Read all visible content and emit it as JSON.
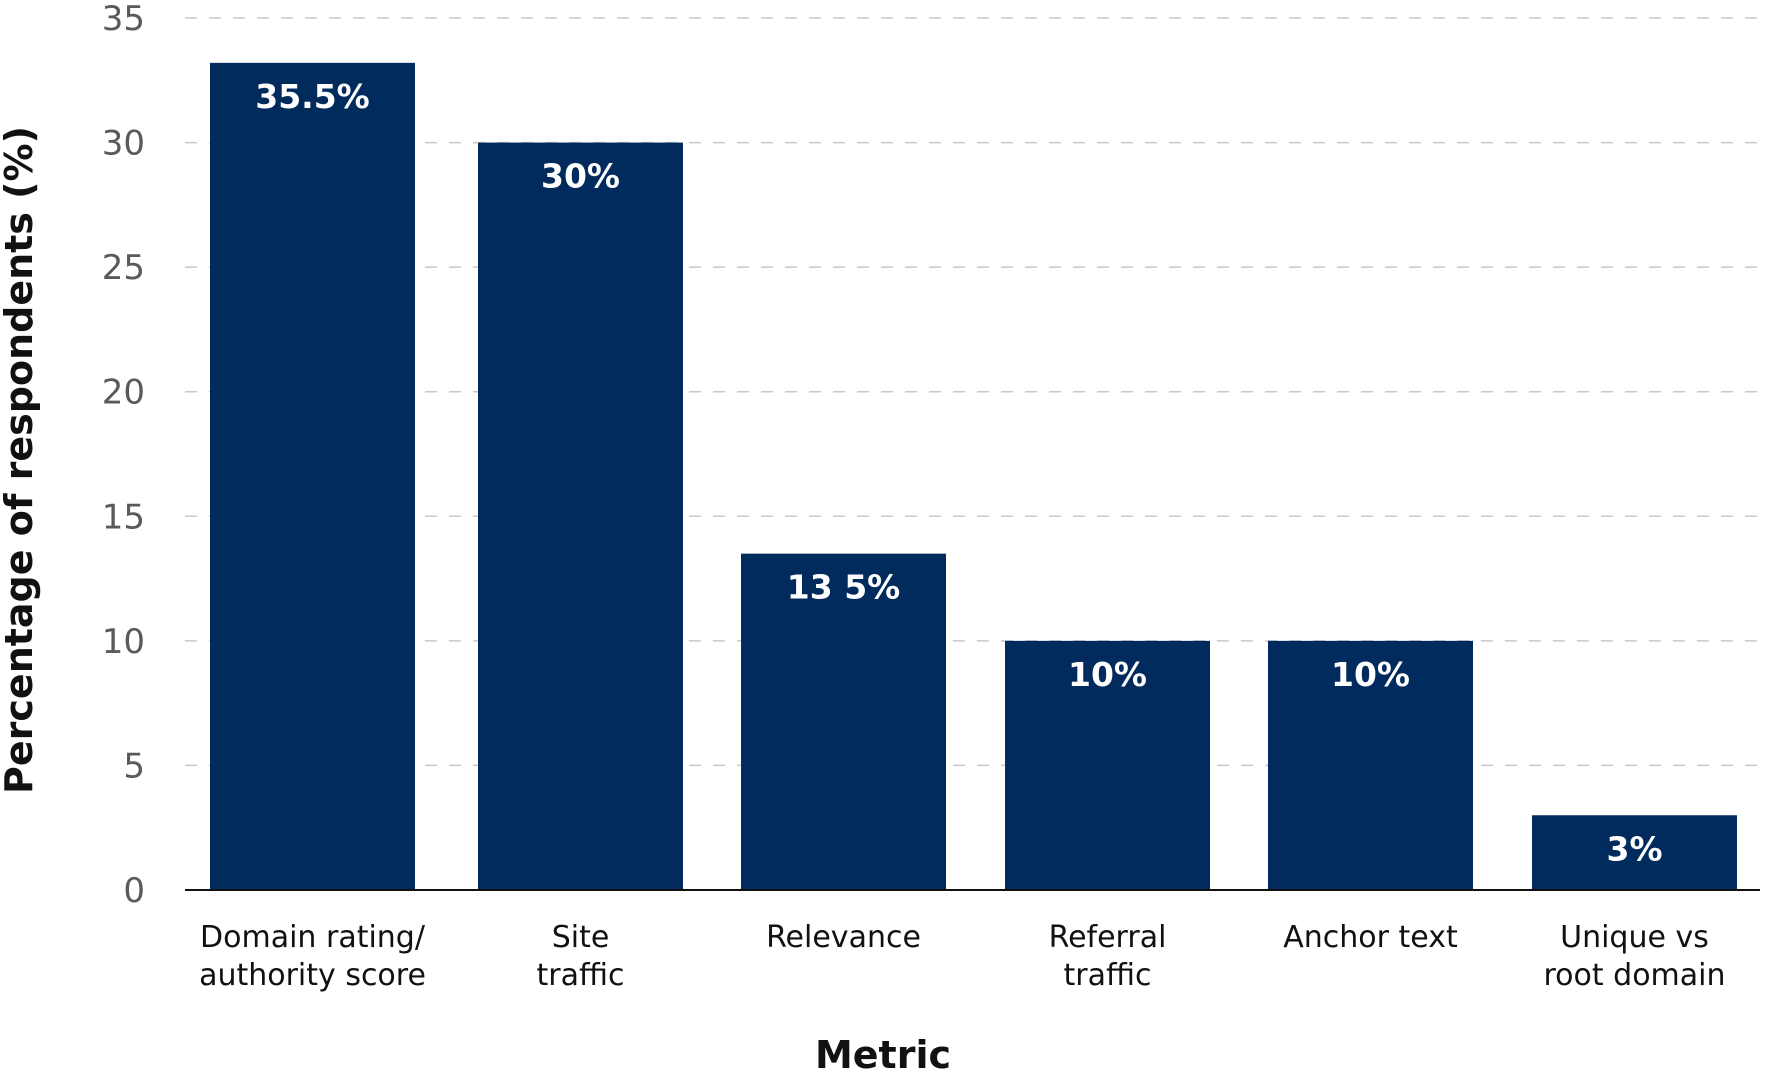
{
  "chart_data": {
    "type": "bar",
    "categories": [
      [
        "Domain rating/",
        "authority score"
      ],
      [
        "Site",
        "traffic"
      ],
      [
        "Relevance"
      ],
      [
        "Referral",
        "traffic"
      ],
      [
        "Anchor text"
      ],
      [
        "Unique vs",
        "root domain"
      ]
    ],
    "values": [
      35.5,
      30,
      13.5,
      10,
      10,
      3
    ],
    "data_labels": [
      "35.5%",
      "30%",
      "13 5%",
      "10%",
      "10%",
      "3%"
    ],
    "title": "",
    "xlabel": "Metric",
    "ylabel": "Percentage of respondents (%)",
    "ylim": [
      0,
      35
    ],
    "yticks": [
      0,
      5,
      10,
      15,
      20,
      25,
      30,
      35
    ],
    "grid": true,
    "grid_style": "dashed",
    "bar_color": "#002b5c",
    "label_color": "#ffffff"
  }
}
